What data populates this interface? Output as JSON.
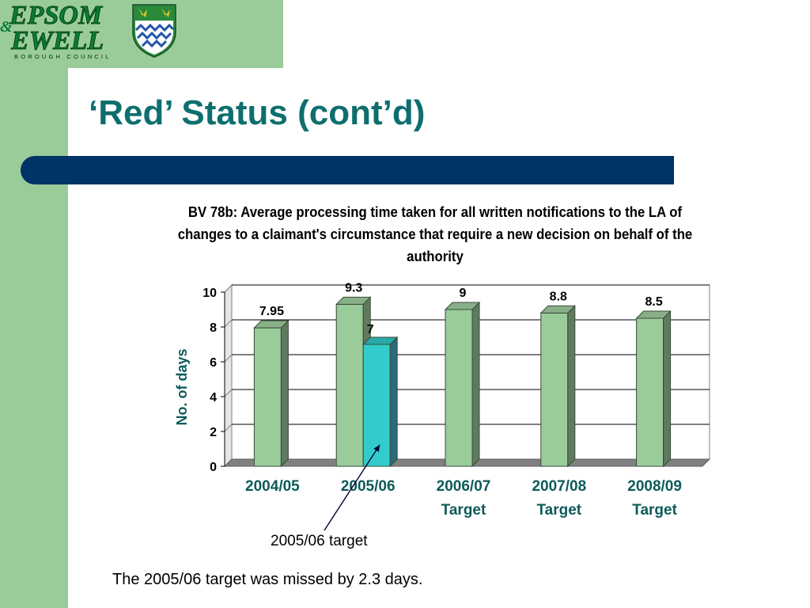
{
  "slide": {
    "title": "‘Red’ Status (cont’d)",
    "annotation": "2005/06 target",
    "note": "The 2005/06 target was missed by 2.3 days.",
    "colors": {
      "green": "#99cc99",
      "title": "#0e6e6e",
      "stripe": "#003366",
      "bar": "#99cc99",
      "target_bar": "#33cccc"
    }
  },
  "logo": {
    "line1": "EPSOM",
    "amp": "&",
    "line2": "EWELL",
    "subtitle": "BOROUGH COUNCIL",
    "icon": "crest-icon"
  },
  "chart_data": {
    "type": "bar",
    "title": "BV 78b: Average processing time taken for all written notifications to the LA of changes to a claimant's circumstance that require a new decision on behalf of the authority",
    "categories": [
      "2004/05",
      "2005/06",
      "2006/07\nTarget",
      "2007/08\nTarget",
      "2008/09\nTarget"
    ],
    "series": [
      {
        "values": [
          7.95,
          9.3,
          9,
          8.8,
          8.5
        ]
      },
      {
        "values": [
          null,
          7,
          null,
          null,
          null
        ]
      }
    ],
    "data_labels": [
      "7.95",
      "9.3",
      "9",
      "8.8",
      "8.5"
    ],
    "target_label": "7",
    "ylabel": "No. of days",
    "ylim": [
      0,
      10
    ],
    "yticks": [
      0,
      2,
      4,
      6,
      8,
      10
    ],
    "grid": true
  }
}
